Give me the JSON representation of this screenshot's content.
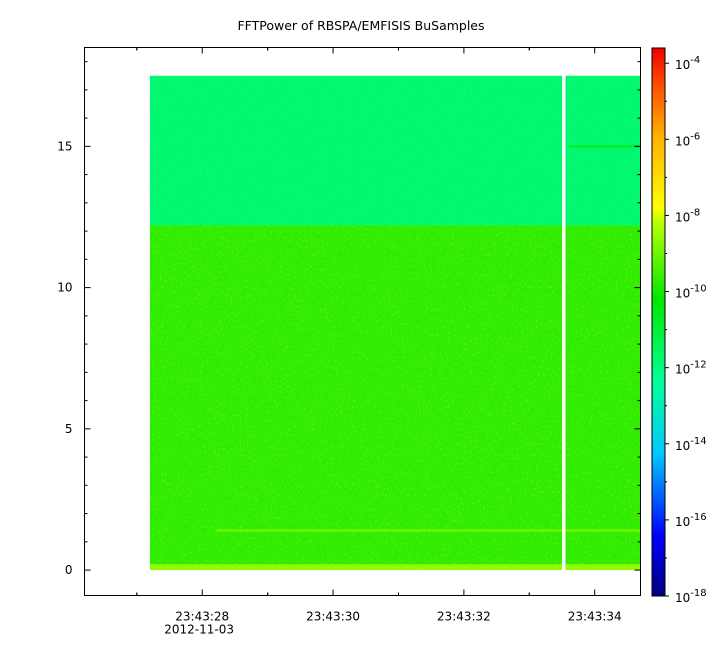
{
  "chart_data": {
    "type": "heatmap",
    "title": "FFTPower of RBSPA/EMFISIS  BuSamples",
    "xlabel": "",
    "ylabel": "",
    "x_axis": {
      "ticks": [
        "23:43:28",
        "23:43:30",
        "23:43:32",
        "23:43:34"
      ],
      "tick_seconds": [
        28,
        30,
        32,
        34
      ],
      "xlim_seconds": [
        26.2,
        34.7
      ],
      "date_label": "2012-11-03"
    },
    "y_axis": {
      "ticks": [
        "0",
        "5",
        "10",
        "15"
      ],
      "tick_values": [
        0,
        5,
        10,
        15
      ],
      "ylim": [
        -0.9,
        18.5
      ]
    },
    "colorbar": {
      "scale": "log",
      "range_exponents": [
        -18,
        -3.6
      ],
      "tick_exponents": [
        -18,
        -16,
        -14,
        -12,
        -10,
        -8,
        -6,
        -4
      ],
      "tick_base": "10",
      "tick_labels": [
        "-18",
        "-16",
        "-14",
        "-12",
        "-10",
        "-8",
        "-6",
        "-4"
      ]
    },
    "data_extent": {
      "x_start_seconds": 27.2,
      "x_end_seconds": 34.7,
      "y_min": 0,
      "y_max": 17.5
    },
    "gaps_seconds": [
      [
        33.5,
        33.55
      ]
    ],
    "bands": [
      {
        "y_from": 12.2,
        "y_to": 17.5,
        "log_power": -11.8
      },
      {
        "y_from": 0.2,
        "y_to": 12.2,
        "log_power": -9.7
      },
      {
        "y_from": 0.0,
        "y_to": 0.2,
        "log_power": -8.6
      }
    ],
    "features": [
      {
        "description": "faint line",
        "y": 1.4,
        "x_from_seconds": 28.2,
        "x_to_seconds": 34.7,
        "log_power": -9.0
      },
      {
        "description": "faint line",
        "y": 15.0,
        "x_from_seconds": 33.6,
        "x_to_seconds": 34.7,
        "log_power": -10.8
      }
    ]
  }
}
